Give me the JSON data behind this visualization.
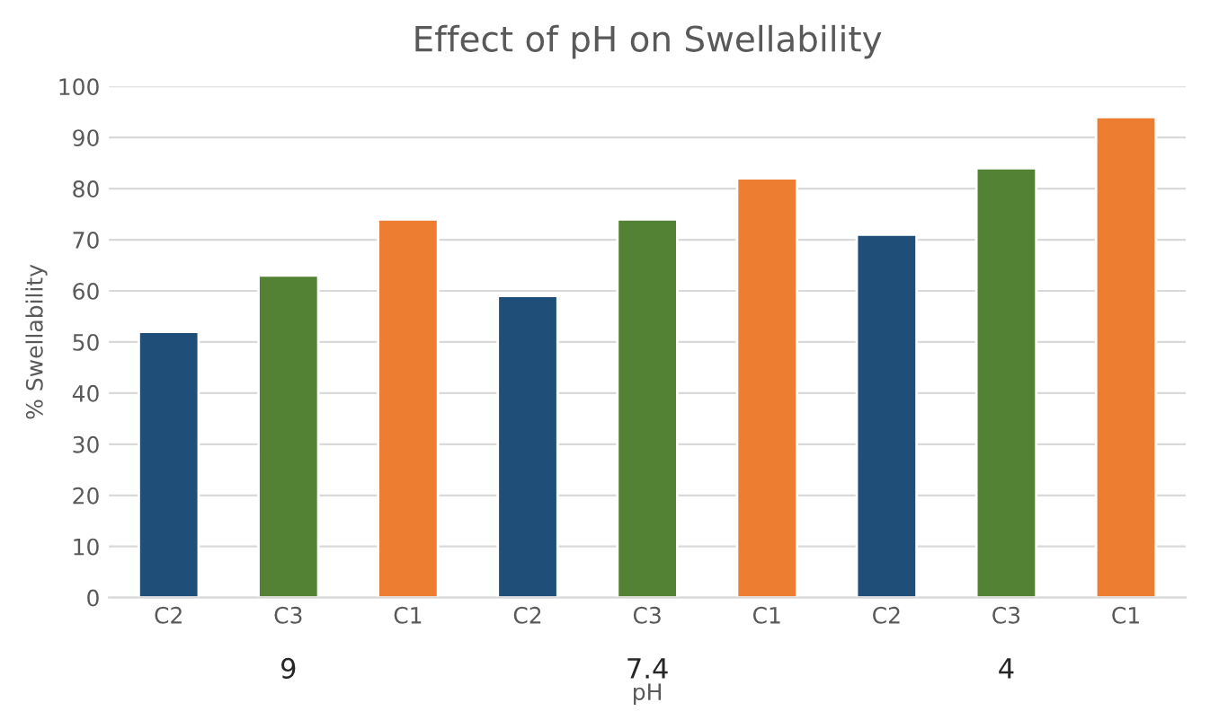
{
  "chart_data": {
    "type": "bar",
    "title": "Effect of pH on Swellability",
    "xlabel": "pH",
    "ylabel": "% Swellability",
    "categories": [
      "C2",
      "C3",
      "C1",
      "C2",
      "C3",
      "C1",
      "C2",
      "C3",
      "C1"
    ],
    "values": [
      52,
      63,
      74,
      59,
      74,
      82,
      71,
      84,
      94
    ],
    "colors": [
      "#1f4e79",
      "#548235",
      "#ed7d31",
      "#1f4e79",
      "#548235",
      "#ed7d31",
      "#1f4e79",
      "#548235",
      "#ed7d31"
    ],
    "annotations": [
      "9",
      "7.4",
      "4"
    ],
    "ylim": [
      0,
      100
    ],
    "yticks": [
      0,
      10,
      20,
      30,
      40,
      50,
      60,
      70,
      80,
      90,
      100
    ],
    "grid": "y",
    "legend": false
  }
}
